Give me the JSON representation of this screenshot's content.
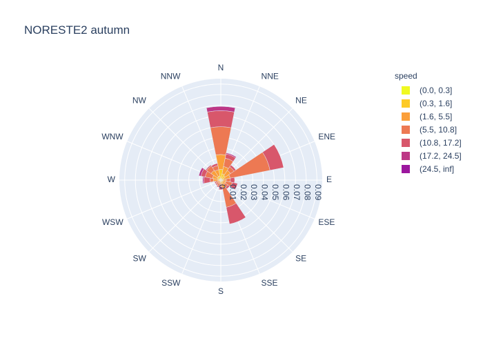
{
  "chart_data": {
    "type": "barpolar",
    "title": "NORESTE2 autumn",
    "directions": [
      "N",
      "NNE",
      "NE",
      "ENE",
      "E",
      "ESE",
      "SE",
      "SSE",
      "S",
      "SSW",
      "SW",
      "WSW",
      "W",
      "WNW",
      "NW",
      "NNW"
    ],
    "radial_ticks": [
      "0",
      "0.01",
      "0.02",
      "0.03",
      "0.04",
      "0.05",
      "0.06",
      "0.07",
      "0.08",
      "0.09"
    ],
    "radial_range": [
      0,
      0.095
    ],
    "legend_title": "speed",
    "series": [
      {
        "name": "(0.0, 0.3]",
        "color": "#f0f921",
        "values": [
          0,
          0,
          0,
          0,
          0,
          0,
          0,
          0,
          0,
          0,
          0,
          0,
          0,
          0,
          0,
          0
        ]
      },
      {
        "name": "(0.3, 1.6]",
        "color": "#fdca26",
        "values": [
          0.01,
          0.006,
          0.005,
          0.003,
          0.002,
          0.002,
          0.002,
          0.003,
          0.002,
          0.001,
          0.001,
          0.001,
          0.002,
          0.003,
          0.004,
          0.004
        ]
      },
      {
        "name": "(1.6, 5.5]",
        "color": "#fb9f3a",
        "values": [
          0.014,
          0.007,
          0.006,
          0.006,
          0.003,
          0.003,
          0.003,
          0.005,
          0.002,
          0.002,
          0.002,
          0.002,
          0.005,
          0.005,
          0.007,
          0.006
        ]
      },
      {
        "name": "(5.5, 10.8]",
        "color": "#ed7953",
        "values": [
          0.026,
          0.008,
          0.004,
          0.038,
          0.004,
          0.006,
          0.003,
          0.018,
          0.002,
          0.003,
          0.002,
          0.002,
          0.003,
          0.007,
          0.005,
          0.004
        ]
      },
      {
        "name": "(10.8, 17.2]",
        "color": "#d8576b",
        "values": [
          0.015,
          0.004,
          0.002,
          0.013,
          0.004,
          0.005,
          0.002,
          0.016,
          0.003,
          0.001,
          0.001,
          0.001,
          0.006,
          0.004,
          0.001,
          0.002
        ]
      },
      {
        "name": "(17.2, 24.5]",
        "color": "#bd3786",
        "values": [
          0.004,
          0.001,
          0,
          0,
          0,
          0,
          0,
          0,
          0,
          0,
          0,
          0,
          0.001,
          0.002,
          0,
          0
        ]
      },
      {
        "name": "(24.5, inf]",
        "color": "#9c179e",
        "values": [
          0,
          0,
          0,
          0,
          0,
          0,
          0,
          0,
          0,
          0,
          0,
          0,
          0,
          0,
          0,
          0
        ]
      }
    ]
  }
}
